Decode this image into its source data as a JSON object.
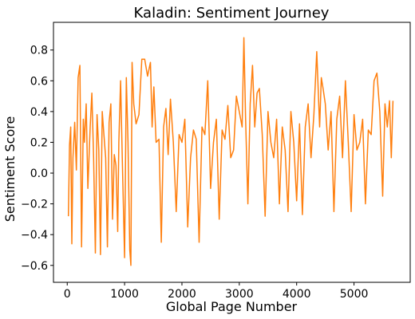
{
  "chart_data": {
    "type": "line",
    "title": "Kaladin: Sentiment Journey",
    "xlabel": "Global Page Number",
    "ylabel": "Sentiment Score",
    "xlim": [
      -240,
      5980
    ],
    "ylim": [
      -0.71,
      0.98
    ],
    "xticks": [
      0,
      1000,
      2000,
      3000,
      4000,
      5000
    ],
    "yticks": [
      -0.6,
      -0.4,
      -0.2,
      0.0,
      0.2,
      0.4,
      0.6,
      0.8
    ],
    "ytick_labels": [
      "−0.6",
      "−0.4",
      "−0.2",
      "0.0",
      "0.2",
      "0.4",
      "0.6",
      "0.8"
    ],
    "grid": false,
    "series": [
      {
        "color": "#ff7f0e",
        "x": [
          20,
          40,
          60,
          80,
          100,
          130,
          160,
          190,
          220,
          250,
          280,
          300,
          330,
          360,
          400,
          430,
          460,
          490,
          520,
          550,
          580,
          610,
          640,
          670,
          700,
          730,
          760,
          790,
          820,
          850,
          880,
          900,
          930,
          960,
          1000,
          1030,
          1060,
          1090,
          1110,
          1130,
          1160,
          1200,
          1250,
          1300,
          1350,
          1400,
          1450,
          1480,
          1510,
          1550,
          1600,
          1640,
          1680,
          1720,
          1760,
          1800,
          1850,
          1900,
          1950,
          2000,
          2050,
          2100,
          2150,
          2200,
          2250,
          2300,
          2350,
          2400,
          2450,
          2500,
          2550,
          2600,
          2650,
          2700,
          2750,
          2800,
          2850,
          2900,
          2950,
          3000,
          3050,
          3080,
          3110,
          3150,
          3190,
          3230,
          3270,
          3310,
          3350,
          3400,
          3450,
          3500,
          3550,
          3600,
          3650,
          3700,
          3750,
          3800,
          3850,
          3900,
          3950,
          4000,
          4050,
          4100,
          4150,
          4200,
          4250,
          4300,
          4350,
          4400,
          4430,
          4460,
          4500,
          4550,
          4600,
          4650,
          4700,
          4750,
          4800,
          4850,
          4900,
          4950,
          5000,
          5050,
          5100,
          5150,
          5200,
          5250,
          5300,
          5350,
          5400,
          5450,
          5500,
          5540,
          5580,
          5620,
          5650,
          5680
        ],
        "y": [
          -0.28,
          0.18,
          0.3,
          -0.46,
          0.1,
          0.33,
          0.02,
          0.62,
          0.7,
          -0.48,
          0.35,
          0.2,
          0.45,
          -0.1,
          0.3,
          0.52,
          0.1,
          -0.52,
          0.38,
          0.15,
          -0.53,
          0.4,
          0.25,
          0.1,
          -0.48,
          0.33,
          0.45,
          -0.3,
          0.12,
          0.05,
          -0.38,
          0.2,
          0.6,
          0.1,
          -0.55,
          0.62,
          0.2,
          -0.5,
          -0.6,
          0.72,
          0.45,
          0.32,
          0.38,
          0.74,
          0.74,
          0.63,
          0.72,
          0.3,
          0.56,
          0.2,
          0.22,
          -0.45,
          0.3,
          0.42,
          0.12,
          0.48,
          0.2,
          -0.25,
          0.25,
          0.2,
          0.35,
          -0.35,
          0.1,
          0.28,
          0.22,
          -0.45,
          0.3,
          0.25,
          0.6,
          -0.1,
          0.2,
          0.35,
          -0.3,
          0.28,
          0.22,
          0.44,
          0.1,
          0.15,
          0.5,
          0.4,
          0.3,
          0.88,
          0.36,
          -0.2,
          0.45,
          0.7,
          0.3,
          0.52,
          0.55,
          0.25,
          -0.28,
          0.4,
          0.2,
          0.1,
          0.35,
          -0.2,
          0.3,
          0.15,
          -0.25,
          0.4,
          0.2,
          -0.18,
          0.32,
          -0.27,
          0.3,
          0.45,
          0.1,
          0.38,
          0.79,
          0.3,
          0.62,
          0.55,
          0.45,
          0.15,
          0.4,
          -0.25,
          0.35,
          0.5,
          0.1,
          0.6,
          0.2,
          -0.25,
          0.38,
          0.15,
          0.2,
          0.35,
          -0.2,
          0.28,
          0.25,
          0.6,
          0.65,
          0.4,
          -0.15,
          0.45,
          0.3,
          0.47,
          0.1,
          0.47
        ]
      }
    ]
  }
}
